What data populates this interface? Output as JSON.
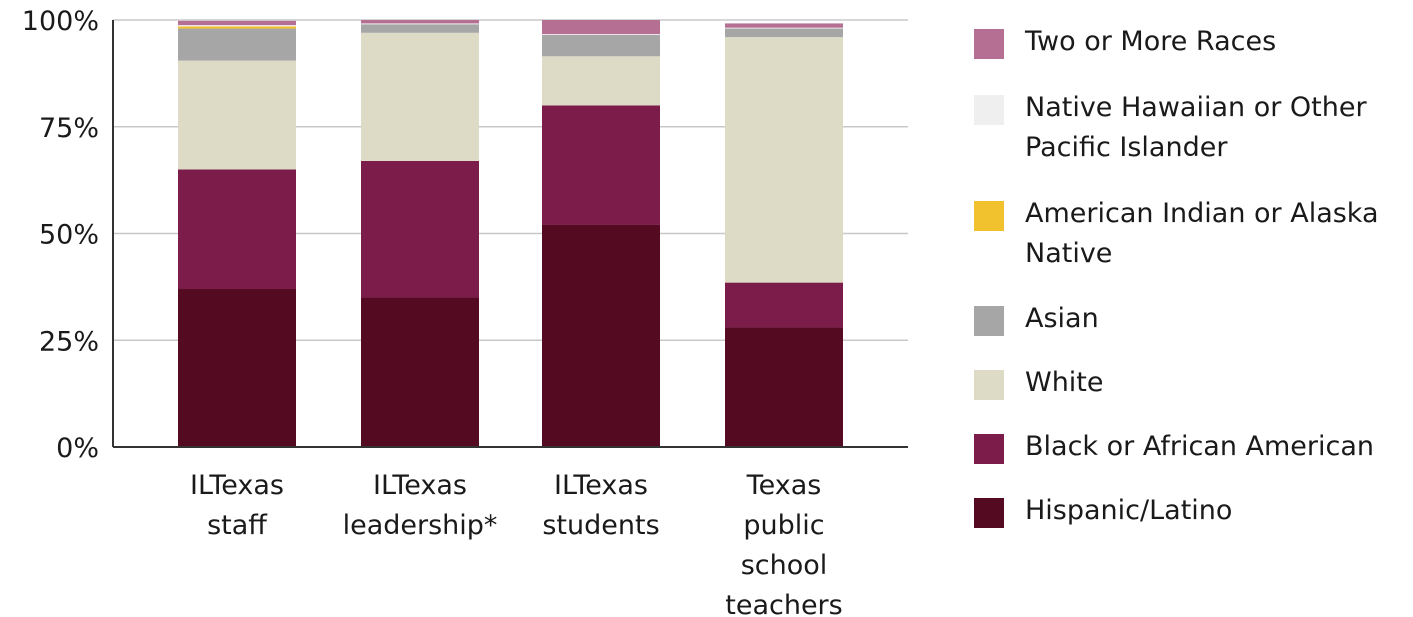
{
  "chart_data": {
    "type": "bar",
    "stacked": true,
    "categories": [
      "ILTexas\nstaff",
      "ILTexas\nleadership*",
      "ILTexas\nstudents",
      "Texas\npublic\nschool\nteachers"
    ],
    "series": [
      {
        "name": "Hispanic/Latino",
        "color": "#540a20",
        "values": [
          37,
          35,
          52,
          28
        ]
      },
      {
        "name": "Black or African American",
        "color": "#7b1c4b",
        "values": [
          28,
          32,
          28,
          10.5
        ]
      },
      {
        "name": "White",
        "color": "#dddac5",
        "values": [
          25.5,
          30,
          11.5,
          57.5
        ]
      },
      {
        "name": "Asian",
        "color": "#a6a6a6",
        "values": [
          7.5,
          2,
          5,
          2
        ]
      },
      {
        "name": "American Indian or Alaska Native",
        "color": "#f2c12e",
        "values": [
          0.5,
          0,
          0,
          0
        ]
      },
      {
        "name": "Native Hawaiian or Other Pacific Islander",
        "color": "#efefef",
        "values": [
          0.3,
          0.2,
          0.2,
          0.2
        ]
      },
      {
        "name": "Two or More Races",
        "color": "#b56f92",
        "values": [
          1,
          0.8,
          3.3,
          1
        ]
      }
    ],
    "yticks": [
      "0%",
      "25%",
      "50%",
      "75%",
      "100%"
    ],
    "ylim": [
      0,
      100
    ],
    "grid": true,
    "legend_position": "right",
    "title": "",
    "xlabel": "",
    "ylabel": ""
  }
}
